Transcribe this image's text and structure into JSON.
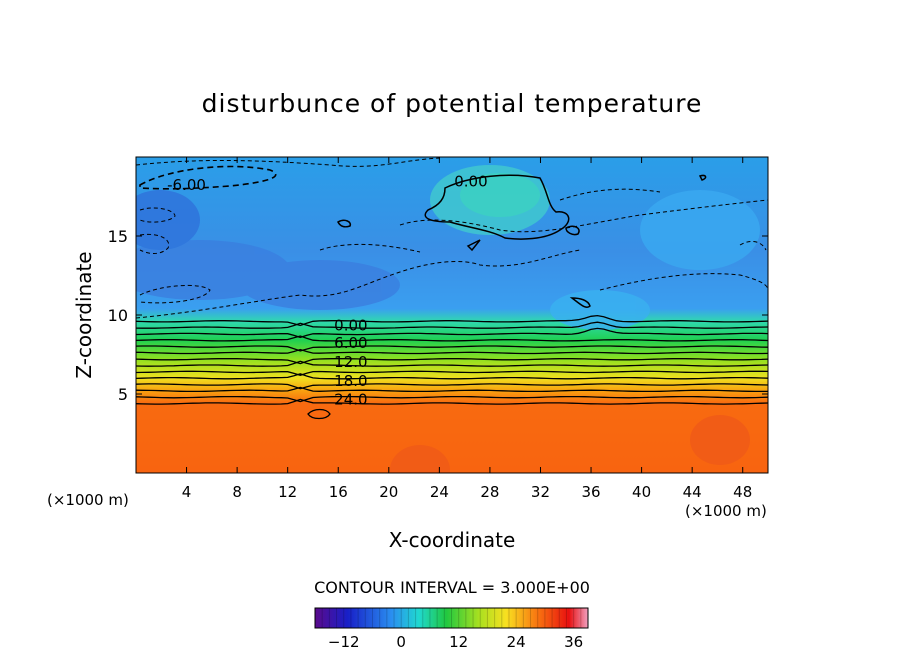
{
  "chart_data": {
    "type": "heatmap",
    "title": "disturbunce of potential temperature",
    "xlabel": "X-coordinate",
    "ylabel": "Z-coordinate",
    "x_unit": "(×1000 m)",
    "xlim": [
      0,
      50
    ],
    "ylim": [
      0,
      20
    ],
    "x_ticks": [
      4,
      8,
      12,
      16,
      20,
      24,
      28,
      32,
      36,
      40,
      44,
      48
    ],
    "y_ticks": [
      5,
      10,
      15
    ],
    "contour_interval_text": "CONTOUR INTERVAL = 3.000E+00",
    "contour_labels": [
      {
        "text": "-6.00",
        "x": 4.0,
        "z": 18.3
      },
      {
        "text": "0.00",
        "x": 26.5,
        "z": 18.5
      },
      {
        "text": "0.00",
        "x": 17.0,
        "z": 9.4
      },
      {
        "text": "6.00",
        "x": 17.0,
        "z": 8.3
      },
      {
        "text": "12.0",
        "x": 17.0,
        "z": 7.1
      },
      {
        "text": "18.0",
        "x": 17.0,
        "z": 5.9
      },
      {
        "text": "24.0",
        "x": 17.0,
        "z": 4.7
      }
    ],
    "contour_lines_z": [
      9.6,
      9.2,
      8.8,
      8.4,
      8.0,
      7.6,
      7.2,
      6.8,
      6.4,
      6.0,
      5.6,
      5.2,
      4.8,
      4.4
    ],
    "colorbar": {
      "range": [
        -18,
        39
      ],
      "ticks": [
        -12,
        0,
        12,
        24,
        36
      ]
    }
  }
}
